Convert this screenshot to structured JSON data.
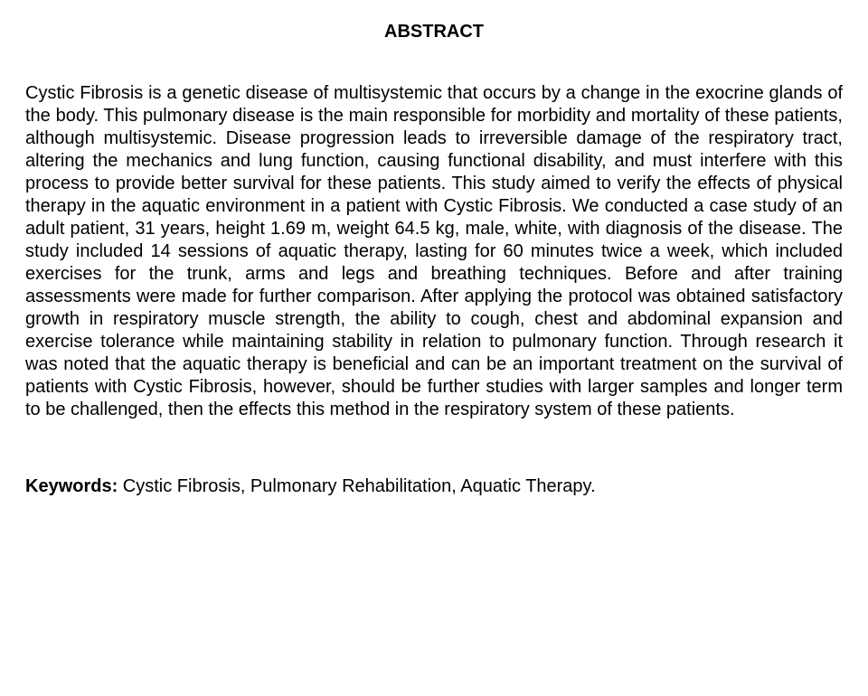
{
  "document": {
    "title": "ABSTRACT",
    "body": "Cystic Fibrosis is a genetic disease of multisystemic that occurs by a change in the exocrine glands of the body. This pulmonary disease is the main responsible for morbidity and mortality of these patients, although multisystemic. Disease progression leads to irreversible damage of the respiratory tract, altering the mechanics and lung function, causing functional disability, and must interfere with this process to provide better survival for these patients. This study aimed to verify the effects of physical therapy in the aquatic environment in a patient with Cystic Fibrosis. We conducted a case study of an adult patient, 31 years, height 1.69 m, weight 64.5 kg, male, white, with diagnosis of the disease. The study included 14 sessions of aquatic therapy, lasting for 60 minutes twice a week, which included exercises for the trunk, arms and legs and breathing techniques. Before and after training assessments were made for further comparison. After applying the protocol was obtained satisfactory growth in respiratory muscle strength, the ability to cough, chest and abdominal expansion and exercise tolerance while maintaining stability in relation to pulmonary function. Through research it was noted that the aquatic therapy is beneficial and can be an important treatment on the survival of patients with Cystic Fibrosis, however, should be further studies with larger samples and longer term to be challenged, then the effects this method in the respiratory system of these patients.",
    "keywords_label": "Keywords:",
    "keywords_text": " Cystic Fibrosis, Pulmonary Rehabilitation, Aquatic Therapy."
  },
  "style": {
    "background_color": "#ffffff",
    "text_color": "#000000",
    "font_family": "Arial",
    "title_fontsize": 20,
    "body_fontsize": 20,
    "title_fontweight": "bold",
    "keywords_label_fontweight": "bold"
  }
}
